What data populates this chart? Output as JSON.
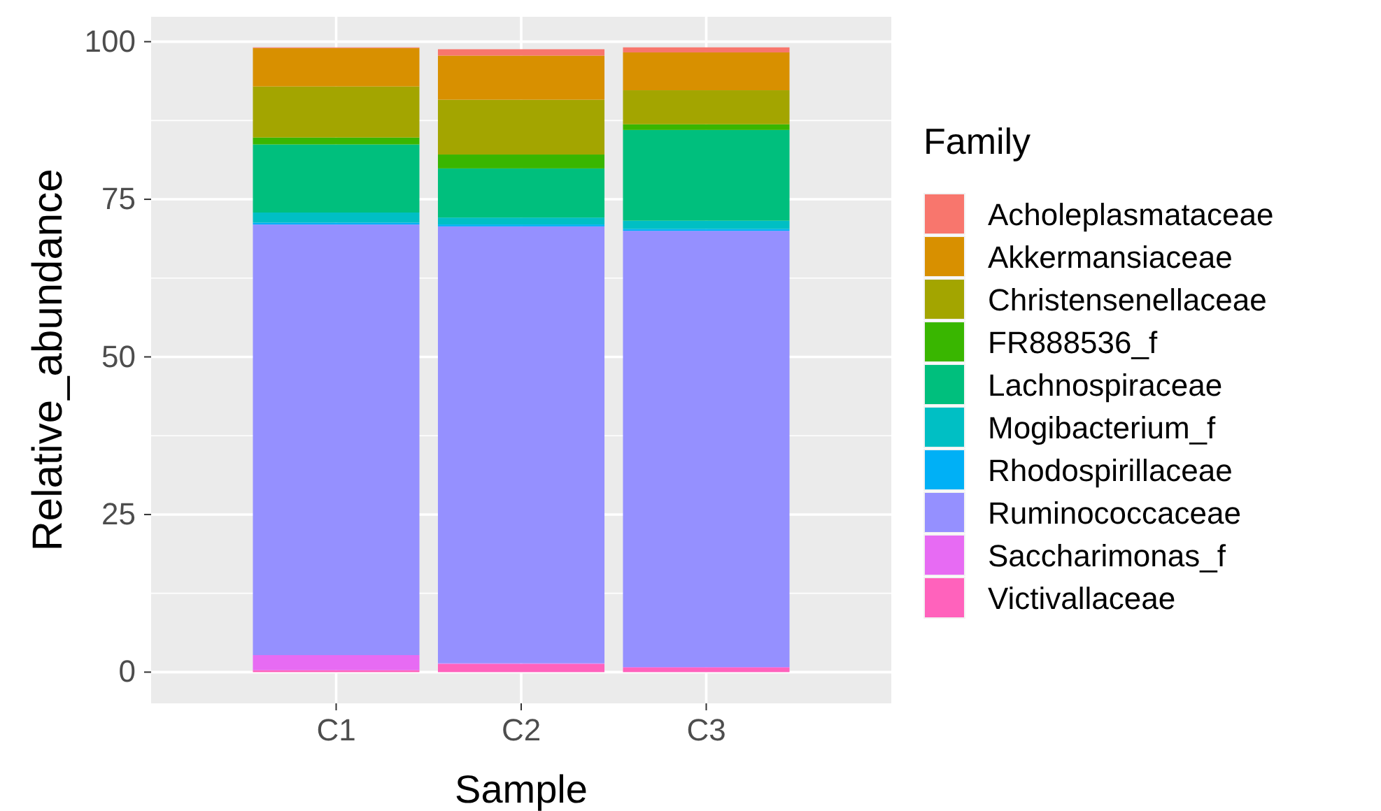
{
  "chart_data": {
    "type": "bar",
    "stacked": true,
    "xlabel": "Sample",
    "ylabel": "Relative_abundance",
    "legend_title": "Family",
    "legend": "right",
    "grid": true,
    "categories": [
      "C1",
      "C2",
      "C3"
    ],
    "ylim": [
      -4.95,
      103.95
    ],
    "yticks": [
      0,
      25,
      50,
      75,
      100
    ],
    "series": [
      {
        "name": "Victivallaceae",
        "color": "#ff62bc",
        "values": [
          0.3,
          1.3,
          0.7
        ]
      },
      {
        "name": "Saccharimonas_f",
        "color": "#e76bf3",
        "values": [
          2.4,
          0.1,
          0.1
        ]
      },
      {
        "name": "Ruminococcaceae",
        "color": "#9590ff",
        "values": [
          68.3,
          69.3,
          69.2
        ]
      },
      {
        "name": "Rhodospirillaceae",
        "color": "#00b0f6",
        "values": [
          0.3,
          0.3,
          0.3
        ]
      },
      {
        "name": "Mogibacterium_f",
        "color": "#00bfc4",
        "values": [
          1.6,
          1.1,
          1.3
        ]
      },
      {
        "name": "Lachnospiraceae",
        "color": "#00bf7d",
        "values": [
          10.8,
          7.8,
          14.4
        ]
      },
      {
        "name": "FR888536_f",
        "color": "#39b600",
        "values": [
          1.1,
          2.2,
          0.9
        ]
      },
      {
        "name": "Christensenellaceae",
        "color": "#a3a500",
        "values": [
          8.1,
          8.7,
          5.4
        ]
      },
      {
        "name": "Akkermansiaceae",
        "color": "#d89000",
        "values": [
          6.1,
          7.0,
          6.0
        ]
      },
      {
        "name": "Acholeplasmataceae",
        "color": "#f8766d",
        "values": [
          0.1,
          1.0,
          0.8
        ]
      }
    ]
  }
}
